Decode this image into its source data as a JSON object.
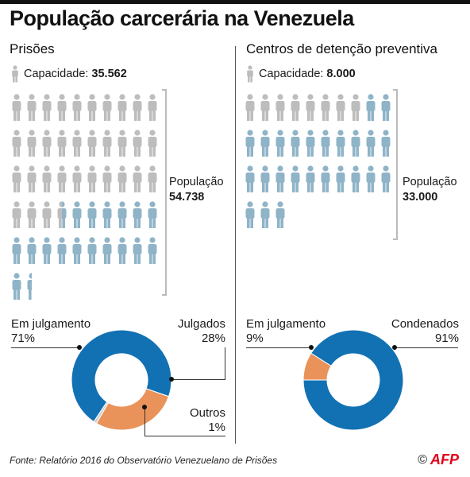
{
  "title": "População carcerária na Venezuela",
  "colors": {
    "capacity": "#bdbdbd",
    "overflow": "#8fb4c8",
    "blue": "#1271b3",
    "orange": "#e9935b",
    "grey": "#cfcfcf"
  },
  "left": {
    "heading": "Prisões",
    "capacity_label": "Capacidade:",
    "capacity_value": "35.562",
    "population_label": "População",
    "population_value": "54.738"
  },
  "right": {
    "heading": "Centros de detenção preventiva",
    "capacity_label": "Capacidade:",
    "capacity_value": "8.000",
    "population_label": "População",
    "population_value": "33.000"
  },
  "chart_data": [
    {
      "type": "pictogram",
      "title": "Prisões",
      "capacity": 35562,
      "population": 54738,
      "icons": {
        "capacity_figures": 33.5,
        "total_figures": 51.5
      }
    },
    {
      "type": "pictogram",
      "title": "Centros de detenção preventiva",
      "capacity": 8000,
      "population": 33000,
      "icons": {
        "capacity_figures": 8,
        "total_figures": 33
      }
    },
    {
      "type": "pie",
      "title": "Prisões",
      "slices": [
        {
          "label": "Em julgamento",
          "value": 71,
          "display": "71%",
          "color": "#1271b3"
        },
        {
          "label": "Julgados",
          "value": 28,
          "display": "28%",
          "color": "#e9935b"
        },
        {
          "label": "Outros",
          "value": 1,
          "display": "1%",
          "color": "#cfcfcf"
        }
      ]
    },
    {
      "type": "pie",
      "title": "Centros de detenção preventiva",
      "slices": [
        {
          "label": "Em julgamento",
          "value": 9,
          "display": "9%",
          "color": "#e9935b"
        },
        {
          "label": "Condenados",
          "value": 91,
          "display": "91%",
          "color": "#1271b3"
        }
      ]
    }
  ],
  "source": "Fonte: Relatório 2016 do Observatório Venezuelano de Prisões",
  "credit_symbol": "©",
  "credit_logo": "AFP"
}
